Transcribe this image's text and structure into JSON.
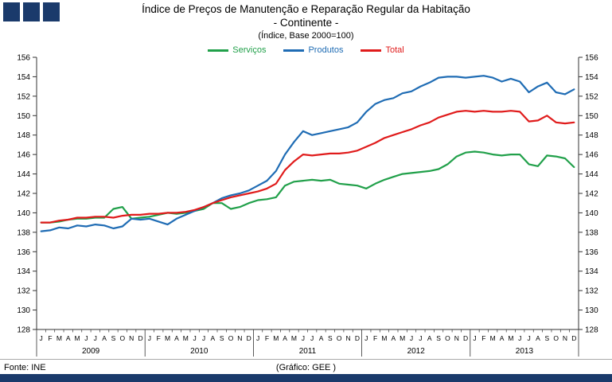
{
  "logo": {
    "color": "#1a3a6b",
    "squares": 3
  },
  "title": {
    "line1": "Índice de Preços de Manutenção e Reparação Regular da Habitação",
    "line2": "- Continente -",
    "line3": "(Índice, Base 2000=100)"
  },
  "legend": {
    "items": [
      {
        "label": "Serviços",
        "color": "#21a04a"
      },
      {
        "label": "Produtos",
        "color": "#1f6cb4"
      },
      {
        "label": "Total",
        "color": "#e01b1b"
      }
    ]
  },
  "footer": {
    "source": "Fonte: INE",
    "credit": "(Gráfico: GEE )"
  },
  "chart_data": {
    "type": "line",
    "title": "Índice de Preços de Manutenção e Reparação Regular da Habitação - Continente - (Índice, Base 2000=100)",
    "x_months": [
      "J",
      "F",
      "M",
      "A",
      "M",
      "J",
      "J",
      "A",
      "S",
      "O",
      "N",
      "D"
    ],
    "years": [
      "2009",
      "2010",
      "2011",
      "2012",
      "2013"
    ],
    "ylim": [
      128,
      156
    ],
    "ytick_step": 2,
    "grid": false,
    "legend_position": "top",
    "series": [
      {
        "name": "Serviços",
        "color": "#21a04a",
        "values": [
          139.0,
          139.0,
          139.1,
          139.3,
          139.4,
          139.4,
          139.5,
          139.5,
          140.4,
          140.6,
          139.4,
          139.5,
          139.6,
          139.8,
          140.0,
          139.9,
          140.0,
          140.2,
          140.4,
          141.0,
          141.0,
          140.4,
          140.6,
          141.0,
          141.3,
          141.4,
          141.6,
          142.8,
          143.2,
          143.3,
          143.4,
          143.3,
          143.4,
          143.0,
          142.9,
          142.8,
          142.5,
          143.0,
          143.4,
          143.7,
          144.0,
          144.1,
          144.2,
          144.3,
          144.5,
          145.0,
          145.8,
          146.2,
          146.3,
          146.2,
          146.0,
          145.9,
          146.0,
          146.0,
          145.0,
          144.8,
          145.9,
          145.8,
          145.6,
          144.7
        ]
      },
      {
        "name": "Produtos",
        "color": "#1f6cb4",
        "values": [
          138.1,
          138.2,
          138.5,
          138.4,
          138.7,
          138.6,
          138.8,
          138.7,
          138.4,
          138.6,
          139.4,
          139.3,
          139.4,
          139.1,
          138.8,
          139.4,
          139.8,
          140.2,
          140.6,
          141.0,
          141.5,
          141.8,
          142.0,
          142.3,
          142.8,
          143.3,
          144.3,
          146.0,
          147.3,
          148.4,
          148.0,
          148.2,
          148.4,
          148.6,
          148.8,
          149.3,
          150.4,
          151.2,
          151.6,
          151.8,
          152.3,
          152.5,
          153.0,
          153.4,
          153.9,
          154.0,
          154.0,
          153.9,
          154.0,
          154.1,
          153.9,
          153.5,
          153.8,
          153.5,
          152.4,
          153.0,
          153.4,
          152.4,
          152.2,
          152.7
        ]
      },
      {
        "name": "Total",
        "color": "#e01b1b",
        "values": [
          139.0,
          139.0,
          139.2,
          139.3,
          139.5,
          139.5,
          139.6,
          139.6,
          139.5,
          139.7,
          139.8,
          139.8,
          139.9,
          139.9,
          140.0,
          140.0,
          140.1,
          140.3,
          140.6,
          141.0,
          141.3,
          141.6,
          141.8,
          142.0,
          142.2,
          142.5,
          143.0,
          144.4,
          145.3,
          146.0,
          145.9,
          146.0,
          146.1,
          146.1,
          146.2,
          146.4,
          146.8,
          147.2,
          147.7,
          148.0,
          148.3,
          148.6,
          149.0,
          149.3,
          149.8,
          150.1,
          150.4,
          150.5,
          150.4,
          150.5,
          150.4,
          150.4,
          150.5,
          150.4,
          149.4,
          149.5,
          150.0,
          149.3,
          149.2,
          149.3
        ]
      }
    ]
  }
}
